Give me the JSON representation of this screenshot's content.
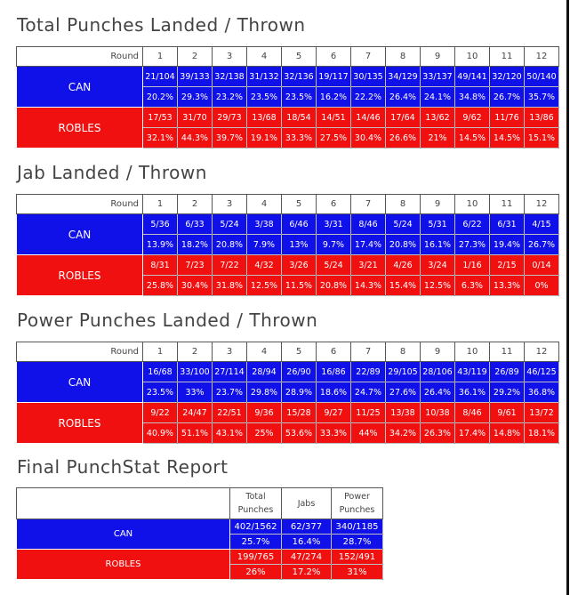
{
  "sections": [
    {
      "title": "Total Punches Landed / Thrown",
      "round_label": "Round",
      "rounds": [
        "1",
        "2",
        "3",
        "4",
        "5",
        "6",
        "7",
        "8",
        "9",
        "10",
        "11",
        "12"
      ],
      "teams": [
        {
          "name": "CAN",
          "fractions": [
            "21/104",
            "39/133",
            "32/138",
            "31/132",
            "32/136",
            "19/117",
            "30/135",
            "34/129",
            "33/137",
            "49/141",
            "32/120",
            "50/140"
          ],
          "percents": [
            "20.2%",
            "29.3%",
            "23.2%",
            "23.5%",
            "23.5%",
            "16.2%",
            "22.2%",
            "26.4%",
            "24.1%",
            "34.8%",
            "26.7%",
            "35.7%"
          ]
        },
        {
          "name": "ROBLES",
          "fractions": [
            "17/53",
            "31/70",
            "29/73",
            "13/68",
            "18/54",
            "14/51",
            "14/46",
            "17/64",
            "13/62",
            "9/62",
            "11/76",
            "13/86"
          ],
          "percents": [
            "32.1%",
            "44.3%",
            "39.7%",
            "19.1%",
            "33.3%",
            "27.5%",
            "30.4%",
            "26.6%",
            "21%",
            "14.5%",
            "14.5%",
            "15.1%"
          ]
        }
      ]
    },
    {
      "title": "Jab Landed / Thrown",
      "round_label": "Round",
      "rounds": [
        "1",
        "2",
        "3",
        "4",
        "5",
        "6",
        "7",
        "8",
        "9",
        "10",
        "11",
        "12"
      ],
      "teams": [
        {
          "name": "CAN",
          "fractions": [
            "5/36",
            "6/33",
            "5/24",
            "3/38",
            "6/46",
            "3/31",
            "8/46",
            "5/24",
            "5/31",
            "6/22",
            "6/31",
            "4/15"
          ],
          "percents": [
            "13.9%",
            "18.2%",
            "20.8%",
            "7.9%",
            "13%",
            "9.7%",
            "17.4%",
            "20.8%",
            "16.1%",
            "27.3%",
            "19.4%",
            "26.7%"
          ]
        },
        {
          "name": "ROBLES",
          "fractions": [
            "8/31",
            "7/23",
            "7/22",
            "4/32",
            "3/26",
            "5/24",
            "3/21",
            "4/26",
            "3/24",
            "1/16",
            "2/15",
            "0/14"
          ],
          "percents": [
            "25.8%",
            "30.4%",
            "31.8%",
            "12.5%",
            "11.5%",
            "20.8%",
            "14.3%",
            "15.4%",
            "12.5%",
            "6.3%",
            "13.3%",
            "0%"
          ]
        }
      ]
    },
    {
      "title": "Power Punches Landed / Thrown",
      "round_label": "Round",
      "rounds": [
        "1",
        "2",
        "3",
        "4",
        "5",
        "6",
        "7",
        "8",
        "9",
        "10",
        "11",
        "12"
      ],
      "teams": [
        {
          "name": "CAN",
          "fractions": [
            "16/68",
            "33/100",
            "27/114",
            "28/94",
            "26/90",
            "16/86",
            "22/89",
            "29/105",
            "28/106",
            "43/119",
            "26/89",
            "46/125"
          ],
          "percents": [
            "23.5%",
            "33%",
            "23.7%",
            "29.8%",
            "28.9%",
            "18.6%",
            "24.7%",
            "27.6%",
            "26.4%",
            "36.1%",
            "29.2%",
            "36.8%"
          ]
        },
        {
          "name": "ROBLES",
          "fractions": [
            "9/22",
            "24/47",
            "22/51",
            "9/36",
            "15/28",
            "9/27",
            "11/25",
            "13/38",
            "10/38",
            "8/46",
            "9/61",
            "13/72"
          ],
          "percents": [
            "40.9%",
            "51.1%",
            "43.1%",
            "25%",
            "53.6%",
            "33.3%",
            "44%",
            "34.2%",
            "26.3%",
            "17.4%",
            "14.8%",
            "18.1%"
          ]
        }
      ]
    }
  ],
  "final": {
    "title": "Final PunchStat Report",
    "columns": [
      "Total Punches",
      "Jabs",
      "Power Punches"
    ],
    "teams": [
      {
        "name": "CAN",
        "fractions": [
          "402/1562",
          "62/377",
          "340/1185"
        ],
        "percents": [
          "25.7%",
          "16.4%",
          "28.7%"
        ]
      },
      {
        "name": "ROBLES",
        "fractions": [
          "199/765",
          "47/274",
          "152/491"
        ],
        "percents": [
          "26%",
          "17.2%",
          "31%"
        ]
      }
    ]
  },
  "colors": {
    "can": "#1010e8",
    "robles": "#f01010"
  }
}
